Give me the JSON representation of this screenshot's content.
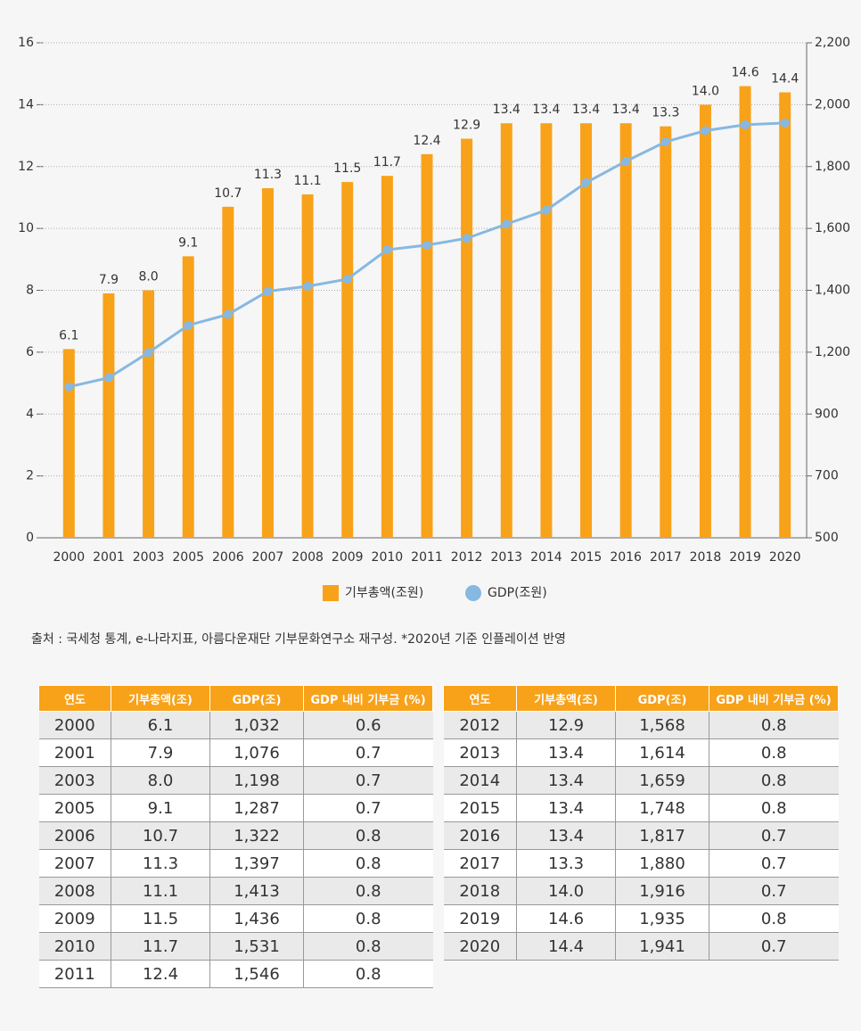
{
  "chart_data": {
    "type": "bar_line",
    "categories": [
      "2000",
      "2001",
      "2003",
      "2005",
      "2006",
      "2007",
      "2008",
      "2009",
      "2010",
      "2011",
      "2012",
      "2013",
      "2014",
      "2015",
      "2016",
      "2017",
      "2018",
      "2019",
      "2020"
    ],
    "series": [
      {
        "name": "기부총액(조원)",
        "color": "#f8a21a",
        "type": "bar",
        "values": [
          6.1,
          7.9,
          8.0,
          9.1,
          10.7,
          11.3,
          11.1,
          11.5,
          11.7,
          12.4,
          12.9,
          13.4,
          13.4,
          13.4,
          13.4,
          13.3,
          14.0,
          14.6,
          14.4
        ],
        "value_labels": [
          "6.1",
          "7.9",
          "8.0",
          "9.1",
          "10.7",
          "11.3",
          "11.1",
          "11.5",
          "11.7",
          "12.4",
          "12.9",
          "13.4",
          "13.4",
          "13.4",
          "13.4",
          "13.3",
          "14.0",
          "14.6",
          "14.4"
        ]
      },
      {
        "name": "GDP(조원)",
        "color": "#86b8e2",
        "type": "line",
        "axis": "y2",
        "values": [
          1032,
          1076,
          1198,
          1287,
          1322,
          1397,
          1413,
          1436,
          1531,
          1546,
          1568,
          1614,
          1659,
          1748,
          1817,
          1880,
          1916,
          1935,
          1941
        ]
      }
    ],
    "ylim": [
      0,
      16
    ],
    "yticks": [
      0,
      2,
      4,
      6,
      8,
      10,
      12,
      14,
      16
    ],
    "y2lim": [
      500,
      2200
    ],
    "y2ticks": [
      500,
      700,
      900,
      {
        "value": 1200,
        "label": "1,200"
      },
      {
        "value": 1400,
        "label": "1,400"
      },
      {
        "value": 1600,
        "label": "1,600"
      },
      {
        "value": 1800,
        "label": "1,800"
      },
      {
        "value": 2000,
        "label": "2,000"
      },
      {
        "value": 2200,
        "label": "2,200"
      }
    ],
    "grid": true,
    "legend": "bottom"
  },
  "source": "출처 : 국세청 통계, e-나라지표,  아름다운재단 기부문화연구소 재구성.  *2020년 기준 인플레이션 반영",
  "tables": [
    {
      "columns": [
        "연도",
        "기부총액(조)",
        "GDP(조)",
        "GDP 내비 기부금 (%)"
      ],
      "rows": [
        [
          "2000",
          "6.1",
          "1,032",
          "0.6"
        ],
        [
          "2001",
          "7.9",
          "1,076",
          "0.7"
        ],
        [
          "2003",
          "8.0",
          "1,198",
          "0.7"
        ],
        [
          "2005",
          "9.1",
          "1,287",
          "0.7"
        ],
        [
          "2006",
          "10.7",
          "1,322",
          "0.8"
        ],
        [
          "2007",
          "11.3",
          "1,397",
          "0.8"
        ],
        [
          "2008",
          "11.1",
          "1,413",
          "0.8"
        ],
        [
          "2009",
          "11.5",
          "1,436",
          "0.8"
        ],
        [
          "2010",
          "11.7",
          "1,531",
          "0.8"
        ],
        [
          "2011",
          "12.4",
          "1,546",
          "0.8"
        ]
      ]
    },
    {
      "columns": [
        "연도",
        "기부총액(조)",
        "GDP(조)",
        "GDP 내비 기부금 (%)"
      ],
      "rows": [
        [
          "2012",
          "12.9",
          "1,568",
          "0.8"
        ],
        [
          "2013",
          "13.4",
          "1,614",
          "0.8"
        ],
        [
          "2014",
          "13.4",
          "1,659",
          "0.8"
        ],
        [
          "2015",
          "13.4",
          "1,748",
          "0.8"
        ],
        [
          "2016",
          "13.4",
          "1,817",
          "0.7"
        ],
        [
          "2017",
          "13.3",
          "1,880",
          "0.7"
        ],
        [
          "2018",
          "14.0",
          "1,916",
          "0.7"
        ],
        [
          "2019",
          "14.6",
          "1,935",
          "0.8"
        ],
        [
          "2020",
          "14.4",
          "1,941",
          "0.7"
        ]
      ]
    }
  ]
}
